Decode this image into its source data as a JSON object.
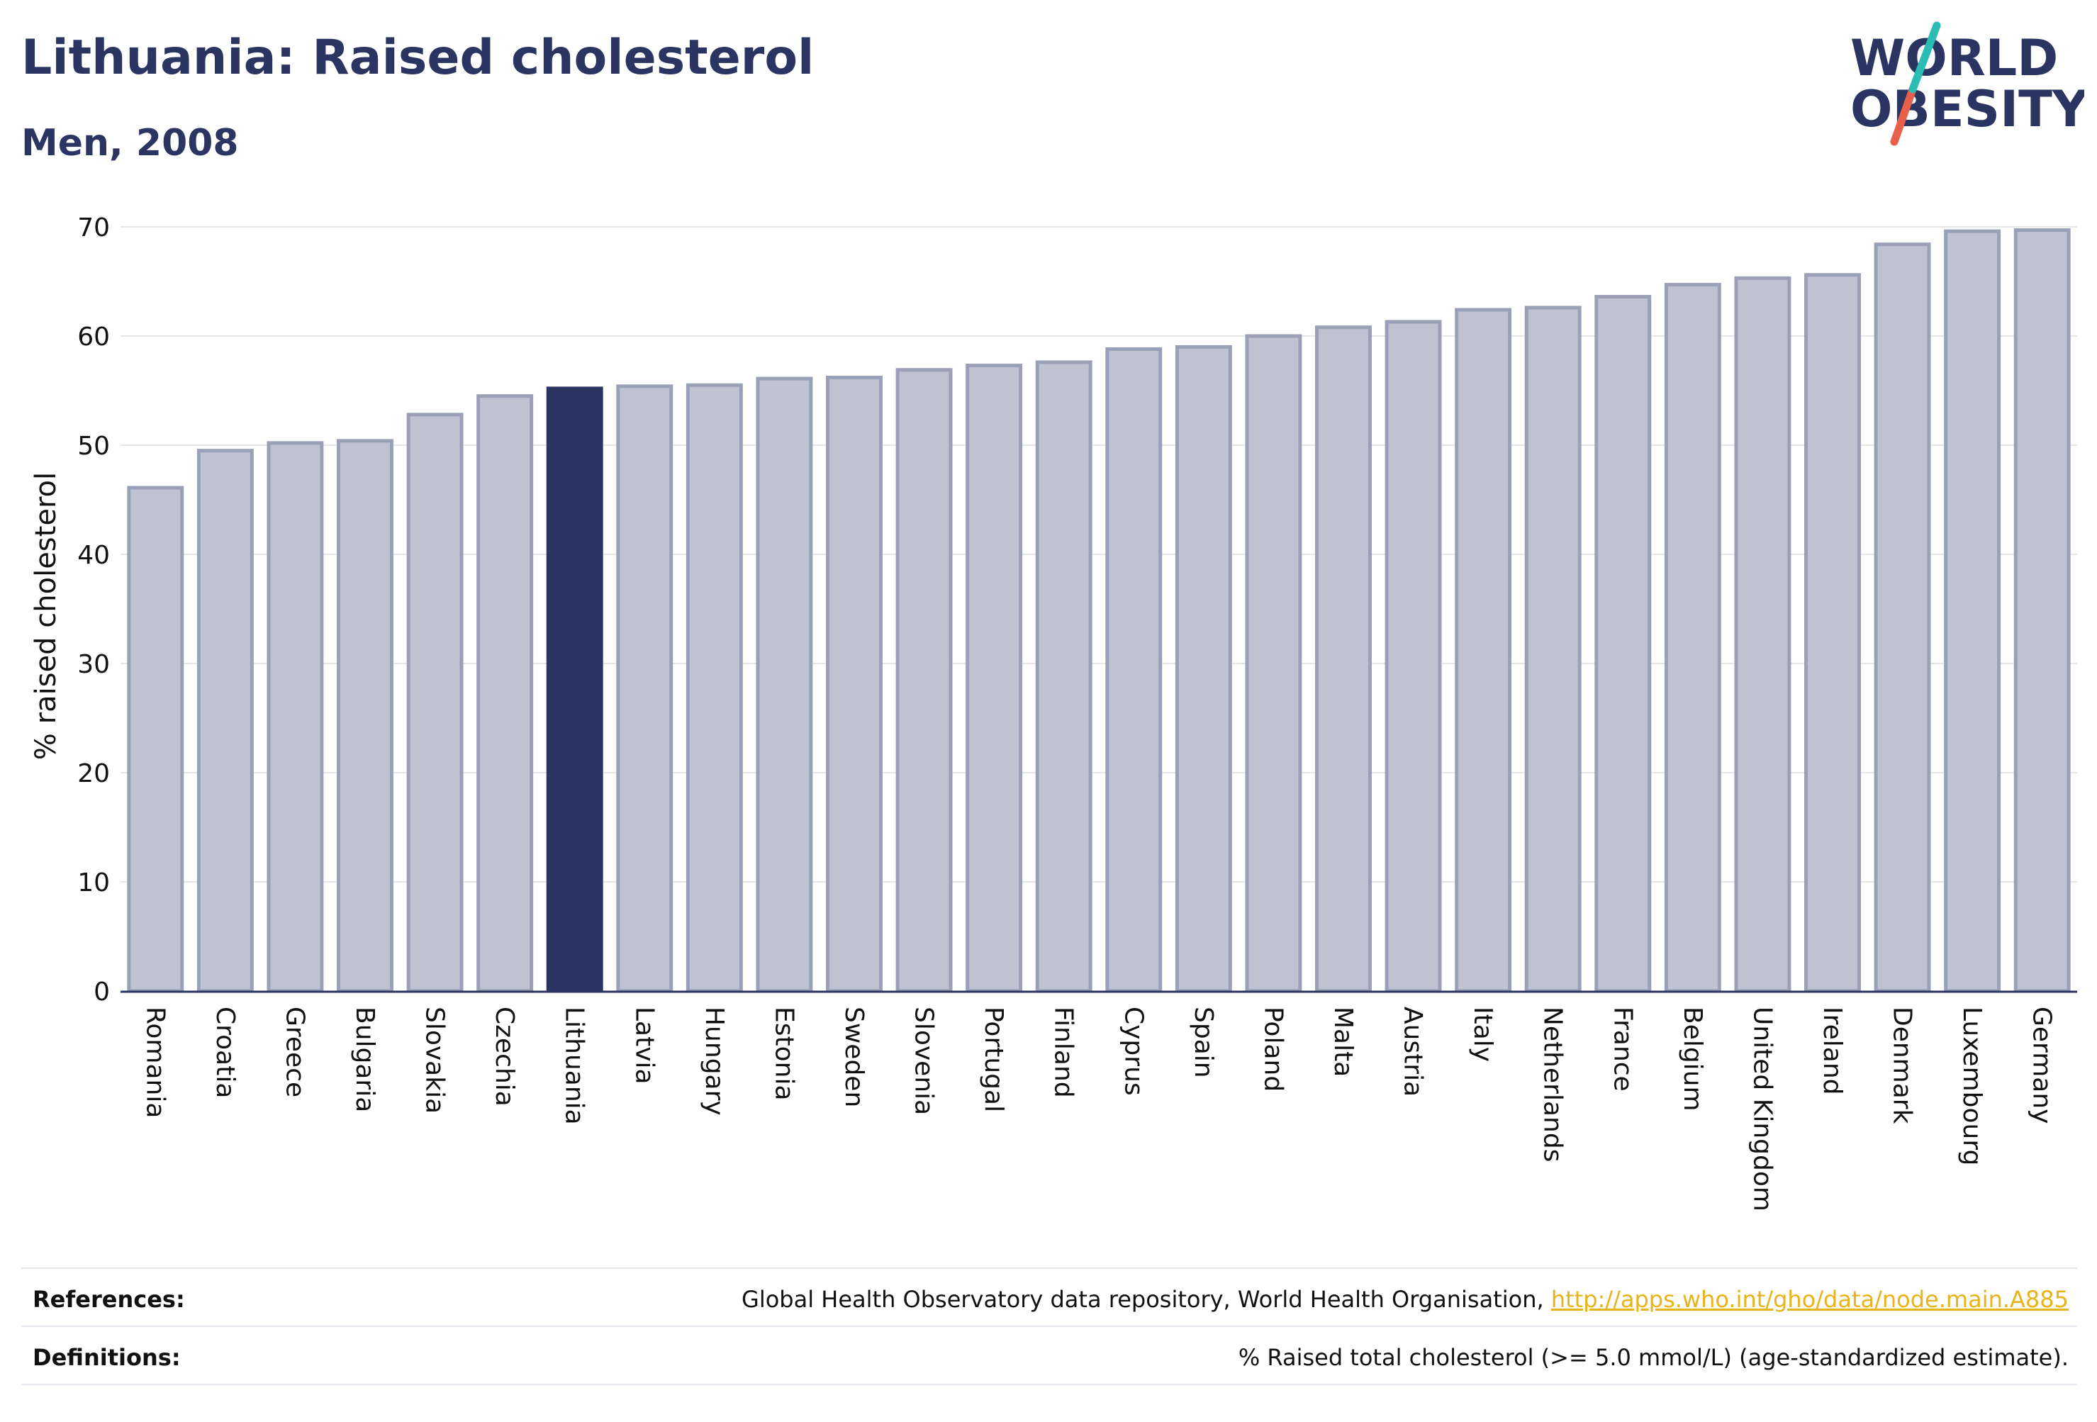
{
  "header": {
    "title": "Lithuania: Raised cholesterol",
    "subtitle": "Men, 2008"
  },
  "logo": {
    "line1": "WORLD",
    "line2": "OBESITY",
    "text_color": "#2a3561",
    "slash_top_color": "#2bbcb3",
    "slash_bottom_color": "#e8604c"
  },
  "colors": {
    "bar_fill": "#bfc3d1",
    "bar_stroke": "#9aa0b8",
    "highlight_fill": "#2a3561",
    "grid": "#e4e6ec",
    "axis": "#2a3561"
  },
  "chart_data": {
    "type": "bar",
    "ylabel": "% raised cholesterol",
    "ylim": [
      0,
      70
    ],
    "yticks": [
      0,
      10,
      20,
      30,
      40,
      50,
      60,
      70
    ],
    "highlight": "Lithuania",
    "categories": [
      "Romania",
      "Croatia",
      "Greece",
      "Bulgaria",
      "Slovakia",
      "Czechia",
      "Lithuania",
      "Latvia",
      "Hungary",
      "Estonia",
      "Sweden",
      "Slovenia",
      "Portugal",
      "Finland",
      "Cyprus",
      "Spain",
      "Poland",
      "Malta",
      "Austria",
      "Italy",
      "Netherlands",
      "France",
      "Belgium",
      "United Kingdom",
      "Ireland",
      "Denmark",
      "Luxembourg",
      "Germany"
    ],
    "values": [
      46.1,
      49.5,
      50.2,
      50.4,
      52.8,
      54.5,
      55.2,
      55.4,
      55.5,
      56.1,
      56.2,
      56.9,
      57.3,
      57.6,
      58.8,
      59.0,
      60.0,
      60.8,
      61.3,
      62.4,
      62.6,
      63.6,
      64.7,
      65.3,
      65.6,
      68.4,
      69.6,
      69.7
    ],
    "grid": true,
    "legend": "none"
  },
  "footer": {
    "references_label": "References:",
    "references_text": "Global Health Observatory data repository, World Health Organisation, ",
    "references_link": "http://apps.who.int/gho/data/node.main.A885",
    "definitions_label": "Definitions:",
    "definitions_text": "% Raised total cholesterol (>= 5.0 mmol/L) (age-standardized estimate)."
  }
}
